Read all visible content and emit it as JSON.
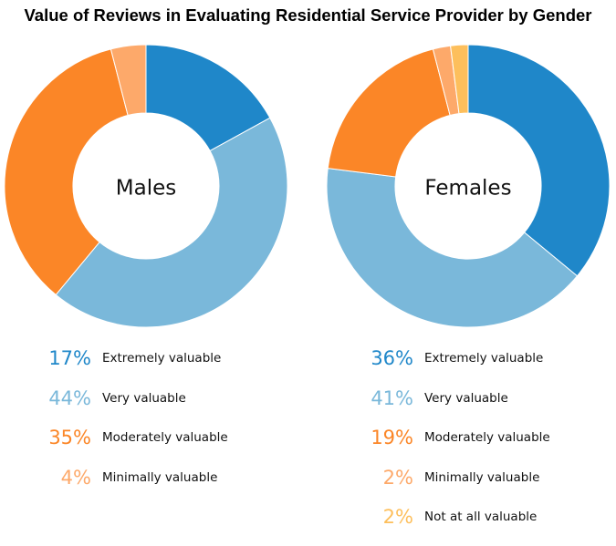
{
  "chart_data": {
    "type": "pie",
    "title": "Value of Reviews in Evaluating Residential Service Provider by Gender",
    "charts": [
      {
        "name": "Males",
        "slices": [
          {
            "label": "Extremely valuable",
            "value": 17,
            "display": "17%",
            "color": "#1f87c9"
          },
          {
            "label": "Very valuable",
            "value": 44,
            "display": "44%",
            "color": "#7ab8da"
          },
          {
            "label": "Moderately valuable",
            "value": 35,
            "display": "35%",
            "color": "#fb8627"
          },
          {
            "label": "Minimally valuable",
            "value": 4,
            "display": "4%",
            "color": "#fda96a"
          }
        ]
      },
      {
        "name": "Females",
        "slices": [
          {
            "label": "Extremely valuable",
            "value": 36,
            "display": "36%",
            "color": "#1f87c9"
          },
          {
            "label": "Very valuable",
            "value": 41,
            "display": "41%",
            "color": "#7ab8da"
          },
          {
            "label": "Moderately valuable",
            "value": 19,
            "display": "19%",
            "color": "#fb8627"
          },
          {
            "label": "Minimally valuable",
            "value": 2,
            "display": "2%",
            "color": "#fda96a"
          },
          {
            "label": "Not at all valuable",
            "value": 2,
            "display": "2%",
            "color": "#fdbf5c"
          }
        ]
      }
    ]
  }
}
